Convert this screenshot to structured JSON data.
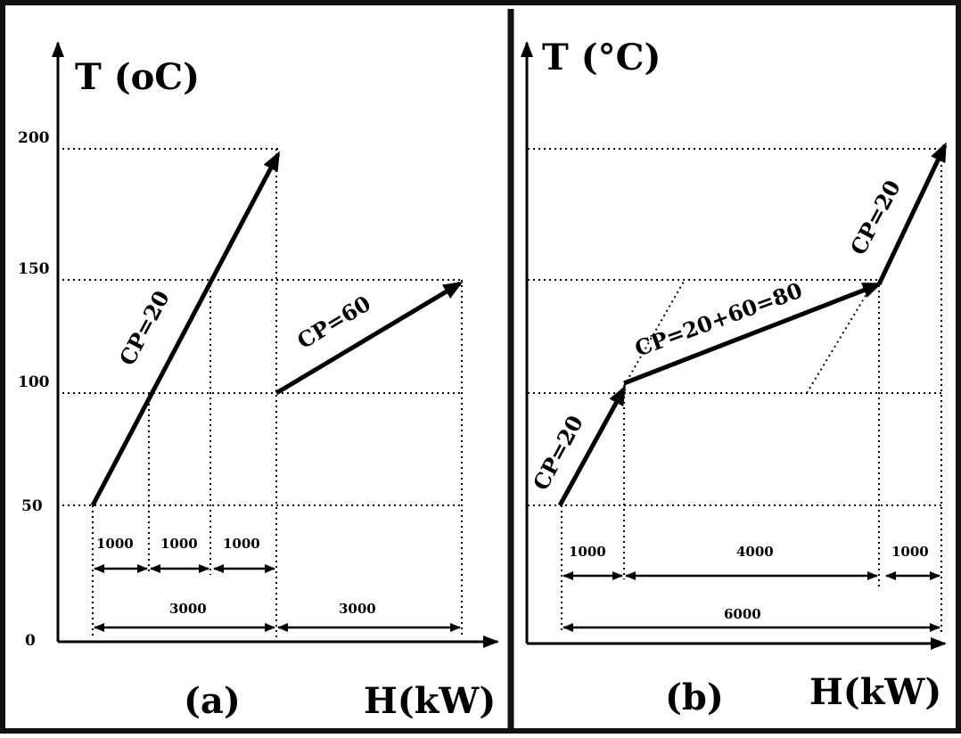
{
  "panel_a": {
    "y_axis_label": "T (oC)",
    "x_axis_label": "H(kW)",
    "caption": "(a)",
    "stream1_label": "CP=20",
    "stream2_label": "CP=60",
    "dimensions": {
      "seg1": "1000",
      "seg2": "1000",
      "seg3": "1000",
      "total1": "3000",
      "total2": "3000"
    }
  },
  "panel_b": {
    "y_axis_label": "T (°C)",
    "x_axis_label": "H(kW)",
    "caption": "(b)",
    "seg1_label": "CP=20",
    "seg2_label": "CP=20+60=80",
    "seg3_label": "CP=20",
    "dimensions": {
      "seg1": "1000",
      "seg2": "4000",
      "seg3": "1000",
      "total": "6000"
    }
  },
  "y_ticks": [
    "200",
    "150",
    "100",
    "50",
    "0"
  ]
}
